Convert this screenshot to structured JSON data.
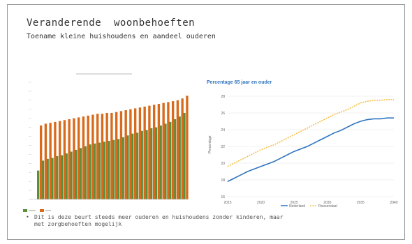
{
  "slide": {
    "title": "Veranderende  woonbehoeften",
    "subtitle": "Toename kleine huishoudens en aandeel ouderen",
    "bullet": "Dit is deze beurt steeds meer ouderen en huishoudens  zonder  kinderen,  maar  met zorgbehoeften mogelijk"
  },
  "colors": {
    "green": "#5a8f3c",
    "orange": "#d86a1c",
    "blue": "#2f74bf",
    "yellow": "#f2c14e",
    "title_blue": "#2f74bf"
  },
  "chart_data": [
    {
      "type": "bar",
      "title": "",
      "categories": [
        "1",
        "2",
        "3",
        "4",
        "5",
        "6",
        "7",
        "8",
        "9",
        "10",
        "11",
        "12",
        "13",
        "14",
        "15",
        "16",
        "17",
        "18",
        "19",
        "20",
        "21",
        "22",
        "23",
        "24",
        "25",
        "26",
        "27",
        "28",
        "29",
        "30",
        "31",
        "32"
      ],
      "series": [
        {
          "name": "",
          "values": [
            32,
            43,
            45,
            46,
            48,
            49,
            51,
            53,
            55,
            57,
            59,
            61,
            62,
            63,
            64,
            65,
            66,
            67,
            69,
            71,
            73,
            74,
            76,
            77,
            79,
            80,
            82,
            84,
            86,
            89,
            92,
            96
          ]
        },
        {
          "name": "",
          "values": [
            82,
            84,
            85,
            86,
            87,
            88,
            89,
            90,
            91,
            92,
            93,
            94,
            95,
            95,
            96,
            96,
            97,
            98,
            99,
            100,
            101,
            102,
            103,
            104,
            105,
            106,
            107,
            108,
            109,
            110,
            112,
            115
          ]
        }
      ],
      "ylim": [
        0,
        130
      ],
      "legend": "bottom-left"
    },
    {
      "type": "line",
      "title": "Percentage 65 jaar en ouder",
      "ylabel": "Percentage",
      "x": [
        2015,
        2020,
        2025,
        2030,
        2035,
        2040
      ],
      "yticks": [
        16,
        18,
        20,
        22,
        24,
        26,
        28
      ],
      "xlim": [
        2015,
        2040
      ],
      "ylim": [
        16,
        28
      ],
      "series": [
        {
          "name": "Nederland",
          "x": [
            2015,
            2016,
            2017,
            2018,
            2019,
            2020,
            2021,
            2022,
            2023,
            2024,
            2025,
            2026,
            2027,
            2028,
            2029,
            2030,
            2031,
            2032,
            2033,
            2034,
            2035,
            2036,
            2037,
            2038,
            2039,
            2040
          ],
          "values": [
            17.8,
            18.2,
            18.6,
            19.0,
            19.3,
            19.6,
            19.9,
            20.2,
            20.6,
            21.0,
            21.4,
            21.7,
            22.0,
            22.4,
            22.8,
            23.2,
            23.6,
            23.9,
            24.3,
            24.7,
            25.0,
            25.2,
            25.3,
            25.3,
            25.4,
            25.4
          ]
        },
        {
          "name": "Roosendaal",
          "x": [
            2015,
            2016,
            2017,
            2018,
            2019,
            2020,
            2021,
            2022,
            2023,
            2024,
            2025,
            2026,
            2027,
            2028,
            2029,
            2030,
            2031,
            2032,
            2033,
            2034,
            2035,
            2036,
            2037,
            2038,
            2039,
            2040
          ],
          "values": [
            19.6,
            20.0,
            20.4,
            20.8,
            21.2,
            21.6,
            21.9,
            22.2,
            22.6,
            23.0,
            23.4,
            23.8,
            24.2,
            24.6,
            25.0,
            25.4,
            25.8,
            26.1,
            26.4,
            26.8,
            27.2,
            27.4,
            27.5,
            27.5,
            27.6,
            27.6
          ]
        }
      ],
      "legend": "bottom-center"
    }
  ]
}
